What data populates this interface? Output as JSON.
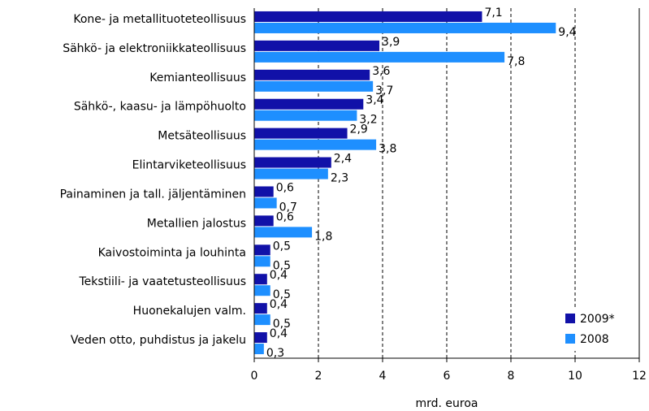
{
  "chart_data": {
    "type": "barh",
    "categories": [
      "Kone- ja metallituoteteollisuus",
      "Sähkö- ja elektroniikkateollisuus",
      "Kemianteollisuus",
      "Sähkö-, kaasu- ja lämpöhuolto",
      "Metsäteollisuus",
      "Elintarviketeollisuus",
      "Painaminen ja tall. jäljentäminen",
      "Metallien jalostus",
      "Kaivostoiminta ja louhinta",
      "Tekstiili- ja vaatetusteollisuus",
      "Huonekalujen valm.",
      "Veden otto, puhdistus ja jakelu"
    ],
    "series": [
      {
        "name": "2009*",
        "color": "#1111a8",
        "values": [
          7.1,
          3.9,
          3.6,
          3.4,
          2.9,
          2.4,
          0.6,
          0.6,
          0.5,
          0.4,
          0.4,
          0.4
        ],
        "value_labels": [
          "7,1",
          "3,9",
          "3,6",
          "3,4",
          "2,9",
          "2,4",
          "0,6",
          "0,6",
          "0,5",
          "0,4",
          "0,4",
          "0,4"
        ]
      },
      {
        "name": "2008",
        "color": "#1e8fff",
        "values": [
          9.4,
          7.8,
          3.7,
          3.2,
          3.8,
          2.3,
          0.7,
          1.8,
          0.5,
          0.5,
          0.5,
          0.3
        ],
        "value_labels": [
          "9,4",
          "7,8",
          "3,7",
          "3,2",
          "3,8",
          "2,3",
          "0,7",
          "1,8",
          "0,5",
          "0,5",
          "0,5",
          "0,3"
        ]
      }
    ],
    "x_label": "mrd. euroa",
    "xlim": [
      0,
      12
    ],
    "xticks": [
      0,
      2,
      4,
      6,
      8,
      10,
      12
    ],
    "grid": true,
    "legend": "lower right"
  }
}
